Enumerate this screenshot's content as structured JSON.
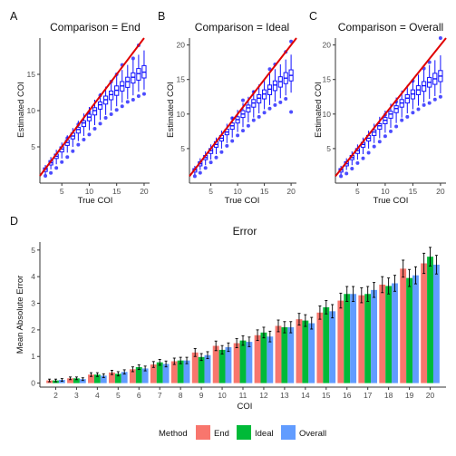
{
  "figure": {
    "panel_labels": [
      "A",
      "B",
      "C",
      "D"
    ],
    "legend": {
      "title": "Method",
      "entries": [
        {
          "label": "End",
          "color": "#F8766D"
        },
        {
          "label": "Ideal",
          "color": "#00BA38"
        },
        {
          "label": "Overall",
          "color": "#619CFF"
        }
      ]
    }
  },
  "chart_data": [
    {
      "type": "boxplot",
      "title": "Comparison = End",
      "xlabel": "True COI",
      "ylabel": "Estimated COI",
      "x": [
        2,
        3,
        4,
        5,
        6,
        7,
        8,
        9,
        10,
        11,
        12,
        13,
        14,
        15,
        16,
        17,
        18,
        19,
        20
      ],
      "median": [
        1.9,
        2.8,
        3.7,
        4.7,
        5.6,
        6.5,
        7.4,
        8.3,
        9.1,
        10.0,
        10.8,
        11.5,
        12.2,
        12.8,
        13.4,
        14.0,
        14.6,
        15.1,
        15.3
      ],
      "q1": [
        1.6,
        2.5,
        3.4,
        4.3,
        5.2,
        6.1,
        6.9,
        7.8,
        8.6,
        9.4,
        10.2,
        10.9,
        11.5,
        12.1,
        12.7,
        13.2,
        13.8,
        14.2,
        14.5
      ],
      "q3": [
        2.1,
        3.1,
        4.0,
        5.0,
        5.9,
        6.9,
        7.7,
        8.6,
        9.5,
        10.4,
        11.2,
        12.0,
        12.7,
        13.4,
        14.0,
        14.6,
        15.2,
        15.8,
        16.2
      ],
      "whisker_low": [
        1.2,
        1.9,
        2.6,
        3.4,
        4.2,
        5.0,
        5.8,
        6.5,
        7.3,
        8.0,
        8.7,
        9.4,
        10.0,
        10.6,
        11.1,
        11.6,
        12.1,
        12.6,
        12.9
      ],
      "whisker_high": [
        2.5,
        3.6,
        4.6,
        5.6,
        6.6,
        7.6,
        8.6,
        9.6,
        10.5,
        11.5,
        12.4,
        13.3,
        14.1,
        14.9,
        15.6,
        16.3,
        17.0,
        17.7,
        18.3
      ],
      "outliers": [
        [
          2,
          1.0
        ],
        [
          3,
          1.4
        ],
        [
          4,
          2.1
        ],
        [
          5,
          2.9
        ],
        [
          6,
          3.6
        ],
        [
          7,
          4.4
        ],
        [
          8,
          5.3
        ],
        [
          9,
          6.0
        ],
        [
          10,
          6.7
        ],
        [
          11,
          7.5
        ],
        [
          12,
          8.2
        ],
        [
          13,
          9.0
        ],
        [
          14,
          9.5
        ],
        [
          15,
          10.1
        ],
        [
          16,
          10.6
        ],
        [
          17,
          11.2
        ],
        [
          18,
          11.5
        ],
        [
          19,
          12.0
        ],
        [
          20,
          12.3
        ],
        [
          6,
          6.2
        ],
        [
          8,
          8.1
        ],
        [
          12,
          12.1
        ],
        [
          15,
          15.0
        ],
        [
          18,
          17.2
        ],
        [
          19,
          19.0
        ],
        [
          16,
          16.3
        ],
        [
          10,
          9.8
        ],
        [
          14,
          14.0
        ]
      ],
      "reference_line": "y = x",
      "xlim": [
        1,
        21
      ],
      "ylim": [
        0,
        20
      ],
      "xticks": [
        5,
        10,
        15,
        20
      ],
      "yticks": [
        5,
        10,
        15
      ],
      "grid": false
    },
    {
      "type": "boxplot",
      "title": "Comparison = Ideal",
      "xlabel": "True COI",
      "ylabel": "Estimated COI",
      "x": [
        2,
        3,
        4,
        5,
        6,
        7,
        8,
        9,
        10,
        11,
        12,
        13,
        14,
        15,
        16,
        17,
        18,
        19,
        20
      ],
      "median": [
        1.9,
        2.8,
        3.7,
        4.7,
        5.6,
        6.5,
        7.4,
        8.3,
        9.2,
        10.0,
        10.9,
        11.6,
        12.3,
        12.9,
        13.6,
        14.2,
        14.7,
        15.2,
        15.6
      ],
      "q1": [
        1.6,
        2.5,
        3.4,
        4.3,
        5.2,
        6.1,
        7.0,
        7.8,
        8.7,
        9.5,
        10.3,
        11.0,
        11.6,
        12.2,
        12.8,
        13.4,
        13.9,
        14.4,
        14.8
      ],
      "q3": [
        2.1,
        3.1,
        4.0,
        5.0,
        6.0,
        6.9,
        7.8,
        8.7,
        9.6,
        10.5,
        11.3,
        12.1,
        12.8,
        13.5,
        14.2,
        14.8,
        15.4,
        16.0,
        16.4
      ],
      "whisker_low": [
        1.2,
        1.9,
        2.6,
        3.4,
        4.2,
        5.0,
        5.8,
        6.6,
        7.4,
        8.1,
        8.8,
        9.5,
        10.1,
        10.7,
        11.3,
        11.8,
        12.3,
        12.7,
        13.1
      ],
      "whisker_high": [
        2.5,
        3.6,
        4.6,
        5.6,
        6.6,
        7.6,
        8.6,
        9.6,
        10.6,
        11.6,
        12.5,
        13.4,
        14.3,
        15.1,
        15.8,
        16.5,
        17.2,
        17.9,
        18.6
      ],
      "outliers": [
        [
          2,
          1.0
        ],
        [
          3,
          1.5
        ],
        [
          4,
          2.2
        ],
        [
          5,
          3.0
        ],
        [
          6,
          3.7
        ],
        [
          7,
          4.5
        ],
        [
          8,
          5.4
        ],
        [
          9,
          6.1
        ],
        [
          10,
          6.9
        ],
        [
          11,
          7.6
        ],
        [
          12,
          8.3
        ],
        [
          13,
          9.1
        ],
        [
          14,
          9.6
        ],
        [
          15,
          10.2
        ],
        [
          16,
          10.8
        ],
        [
          17,
          11.3
        ],
        [
          18,
          11.7
        ],
        [
          19,
          12.2
        ],
        [
          20,
          10.3
        ],
        [
          11,
          12.0
        ],
        [
          13,
          13.2
        ],
        [
          17,
          17.2
        ],
        [
          19,
          19.0
        ],
        [
          20,
          20.5
        ],
        [
          16,
          16.5
        ],
        [
          9,
          9.4
        ]
      ],
      "reference_line": "y = x",
      "xlim": [
        1,
        21
      ],
      "ylim": [
        0,
        21
      ],
      "xticks": [
        5,
        10,
        15,
        20
      ],
      "yticks": [
        5,
        10,
        15,
        20
      ],
      "grid": false
    },
    {
      "type": "boxplot",
      "title": "Comparison = Overall",
      "xlabel": "True COI",
      "ylabel": "Estimated COI",
      "x": [
        2,
        3,
        4,
        5,
        6,
        7,
        8,
        9,
        10,
        11,
        12,
        13,
        14,
        15,
        16,
        17,
        18,
        19,
        20
      ],
      "median": [
        1.9,
        2.8,
        3.7,
        4.7,
        5.6,
        6.5,
        7.4,
        8.3,
        9.1,
        10.0,
        10.8,
        11.6,
        12.3,
        12.9,
        13.5,
        14.1,
        14.6,
        15.1,
        15.5
      ],
      "q1": [
        1.6,
        2.5,
        3.4,
        4.3,
        5.2,
        6.1,
        6.9,
        7.8,
        8.6,
        9.4,
        10.2,
        11.0,
        11.6,
        12.2,
        12.8,
        13.3,
        13.9,
        14.3,
        14.7
      ],
      "q3": [
        2.1,
        3.1,
        4.0,
        5.0,
        5.9,
        6.9,
        7.7,
        8.6,
        9.5,
        10.4,
        11.2,
        12.1,
        12.8,
        13.5,
        14.1,
        14.7,
        15.3,
        15.9,
        16.3
      ],
      "whisker_low": [
        1.2,
        1.9,
        2.6,
        3.4,
        4.2,
        5.0,
        5.8,
        6.5,
        7.3,
        8.0,
        8.7,
        9.5,
        10.1,
        10.7,
        11.2,
        11.7,
        12.2,
        12.6,
        13.0
      ],
      "whisker_high": [
        2.5,
        3.6,
        4.6,
        5.6,
        6.6,
        7.6,
        8.6,
        9.6,
        10.5,
        11.5,
        12.4,
        13.4,
        14.2,
        15.0,
        15.7,
        16.4,
        17.1,
        17.8,
        18.5
      ],
      "outliers": [
        [
          2,
          1.0
        ],
        [
          3,
          1.4
        ],
        [
          4,
          2.1
        ],
        [
          5,
          2.9
        ],
        [
          6,
          3.6
        ],
        [
          7,
          4.4
        ],
        [
          8,
          5.3
        ],
        [
          9,
          6.0
        ],
        [
          10,
          6.8
        ],
        [
          11,
          7.5
        ],
        [
          12,
          8.2
        ],
        [
          13,
          9.1
        ],
        [
          14,
          9.6
        ],
        [
          15,
          10.2
        ],
        [
          16,
          10.7
        ],
        [
          17,
          11.3
        ],
        [
          18,
          11.6
        ],
        [
          19,
          12.1
        ],
        [
          20,
          12.5
        ],
        [
          12,
          11.8
        ],
        [
          15,
          14.8
        ],
        [
          18,
          17.5
        ],
        [
          20,
          21.0
        ],
        [
          17,
          16.6
        ],
        [
          10,
          9.9
        ]
      ],
      "reference_line": "y = x",
      "xlim": [
        1,
        21
      ],
      "ylim": [
        0,
        21
      ],
      "xticks": [
        5,
        10,
        15,
        20
      ],
      "yticks": [
        5,
        10,
        15,
        20
      ],
      "grid": false
    },
    {
      "type": "bar",
      "title": "Error",
      "xlabel": "COI",
      "ylabel": "Mean Absolute Error",
      "categories": [
        "2",
        "3",
        "4",
        "5",
        "6",
        "7",
        "8",
        "9",
        "10",
        "11",
        "12",
        "13",
        "14",
        "15",
        "16",
        "17",
        "18",
        "19",
        "20"
      ],
      "series": [
        {
          "name": "End",
          "color": "#F8766D",
          "values": [
            0.1,
            0.18,
            0.32,
            0.4,
            0.52,
            0.7,
            0.82,
            1.15,
            1.4,
            1.5,
            1.8,
            2.15,
            2.4,
            2.65,
            3.1,
            3.3,
            3.7,
            4.3,
            4.5
          ],
          "err": [
            0.05,
            0.05,
            0.07,
            0.08,
            0.09,
            0.11,
            0.12,
            0.15,
            0.18,
            0.17,
            0.2,
            0.22,
            0.22,
            0.25,
            0.28,
            0.28,
            0.3,
            0.32,
            0.38
          ]
        },
        {
          "name": "Ideal",
          "color": "#00BA38",
          "values": [
            0.1,
            0.18,
            0.32,
            0.35,
            0.6,
            0.78,
            0.85,
            0.98,
            1.25,
            1.6,
            1.9,
            2.1,
            2.35,
            2.85,
            3.35,
            3.35,
            3.65,
            3.95,
            4.75
          ],
          "err": [
            0.05,
            0.05,
            0.07,
            0.08,
            0.09,
            0.11,
            0.12,
            0.13,
            0.16,
            0.18,
            0.2,
            0.21,
            0.22,
            0.25,
            0.28,
            0.28,
            0.3,
            0.32,
            0.35
          ]
        },
        {
          "name": "Overall",
          "color": "#619CFF",
          "values": [
            0.12,
            0.15,
            0.28,
            0.42,
            0.55,
            0.72,
            0.85,
            1.05,
            1.35,
            1.55,
            1.75,
            2.1,
            2.25,
            2.7,
            3.35,
            3.5,
            3.75,
            4.05,
            4.45
          ],
          "err": [
            0.05,
            0.05,
            0.07,
            0.08,
            0.09,
            0.11,
            0.12,
            0.13,
            0.16,
            0.18,
            0.2,
            0.21,
            0.22,
            0.25,
            0.28,
            0.28,
            0.3,
            0.32,
            0.35
          ]
        }
      ],
      "ylim": [
        -0.15,
        5.3
      ],
      "yticks": [
        0,
        1,
        2,
        3,
        4,
        5
      ],
      "legend_position": "bottom",
      "grid": false
    }
  ]
}
